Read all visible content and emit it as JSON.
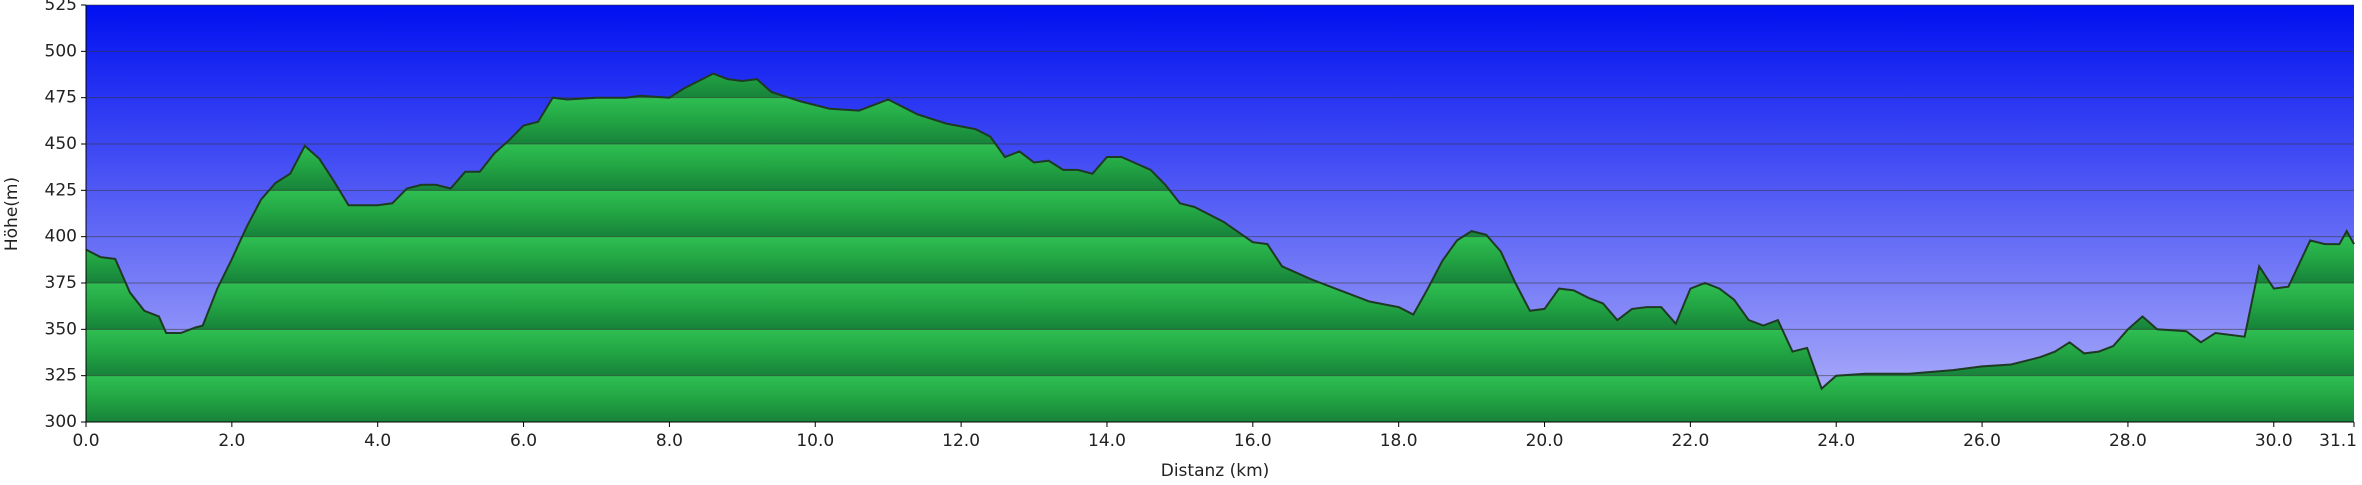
{
  "chart_data": {
    "type": "area",
    "xlabel": "Distanz  (km)",
    "ylabel": "Höhe(m)",
    "color": "#22aa44",
    "line_color": "#1e3a22",
    "x": [
      0.0,
      0.2,
      0.4,
      0.6,
      0.8,
      1.0,
      1.1,
      1.3,
      1.5,
      1.6,
      1.8,
      2.0,
      2.2,
      2.4,
      2.6,
      2.8,
      3.0,
      3.2,
      3.4,
      3.6,
      4.0,
      4.2,
      4.4,
      4.6,
      4.8,
      5.0,
      5.2,
      5.4,
      5.6,
      5.8,
      6.0,
      6.2,
      6.4,
      6.6,
      7.0,
      7.4,
      7.6,
      8.0,
      8.2,
      8.6,
      8.8,
      9.0,
      9.2,
      9.4,
      9.8,
      10.2,
      10.6,
      11.0,
      11.4,
      11.8,
      12.2,
      12.4,
      12.6,
      12.8,
      13.0,
      13.2,
      13.4,
      13.6,
      13.8,
      14.0,
      14.2,
      14.6,
      14.8,
      15.0,
      15.2,
      15.6,
      16.0,
      16.2,
      16.4,
      16.8,
      17.2,
      17.6,
      18.0,
      18.2,
      18.4,
      18.6,
      18.8,
      19.0,
      19.2,
      19.4,
      19.6,
      19.8,
      20.0,
      20.2,
      20.4,
      20.6,
      20.8,
      21.0,
      21.2,
      21.4,
      21.6,
      21.8,
      22.0,
      22.2,
      22.4,
      22.6,
      22.8,
      23.0,
      23.2,
      23.4,
      23.6,
      23.8,
      24.0,
      24.4,
      25.0,
      25.6,
      26.0,
      26.4,
      26.8,
      27.0,
      27.2,
      27.4,
      27.6,
      27.8,
      28.0,
      28.2,
      28.4,
      28.8,
      29.0,
      29.2,
      29.6,
      29.7,
      29.8,
      30.0,
      30.2,
      30.5,
      30.7,
      30.9,
      31.0,
      31.1
    ],
    "values": [
      393,
      389,
      388,
      370,
      360,
      357,
      348,
      348,
      351,
      352,
      372,
      388,
      405,
      420,
      429,
      434,
      449,
      442,
      430,
      417,
      417,
      418,
      426,
      428,
      428,
      426,
      435,
      435,
      445,
      452,
      460,
      462,
      475,
      474,
      475,
      475,
      476,
      475,
      480,
      488,
      485,
      484,
      485,
      478,
      473,
      469,
      468,
      474,
      466,
      461,
      458,
      454,
      443,
      446,
      440,
      441,
      436,
      436,
      434,
      443,
      443,
      436,
      428,
      418,
      416,
      408,
      397,
      396,
      384,
      377,
      371,
      365,
      362,
      358,
      372,
      387,
      398,
      403,
      401,
      392,
      375,
      360,
      361,
      372,
      371,
      367,
      364,
      355,
      361,
      362,
      362,
      353,
      372,
      375,
      372,
      366,
      355,
      352,
      355,
      338,
      340,
      318,
      325,
      326,
      326,
      328,
      330,
      331,
      335,
      338,
      343,
      337,
      338,
      341,
      350,
      357,
      350,
      349,
      343,
      348,
      346,
      365,
      384,
      372,
      373,
      398,
      396,
      396,
      403,
      396
    ],
    "xlim": [
      0,
      31.1
    ],
    "xticks": [
      {
        "value": 0,
        "label": "0.0"
      },
      {
        "value": 2,
        "label": "2.0"
      },
      {
        "value": 4,
        "label": "4.0"
      },
      {
        "value": 6,
        "label": "6.0"
      },
      {
        "value": 8,
        "label": "8.0"
      },
      {
        "value": 10,
        "label": "10.0"
      },
      {
        "value": 12,
        "label": "12.0"
      },
      {
        "value": 14,
        "label": "14.0"
      },
      {
        "value": 16,
        "label": "16.0"
      },
      {
        "value": 18,
        "label": "18.0"
      },
      {
        "value": 20,
        "label": "20.0"
      },
      {
        "value": 22,
        "label": "22.0"
      },
      {
        "value": 24,
        "label": "24.0"
      },
      {
        "value": 26,
        "label": "26.0"
      },
      {
        "value": 28,
        "label": "28.0"
      },
      {
        "value": 30,
        "label": "30.0"
      },
      31.1
    ],
    "ylim": [
      300,
      525
    ],
    "yticks": [
      300,
      325,
      350,
      375,
      400,
      425,
      450,
      475,
      500,
      525
    ],
    "grid": true
  }
}
